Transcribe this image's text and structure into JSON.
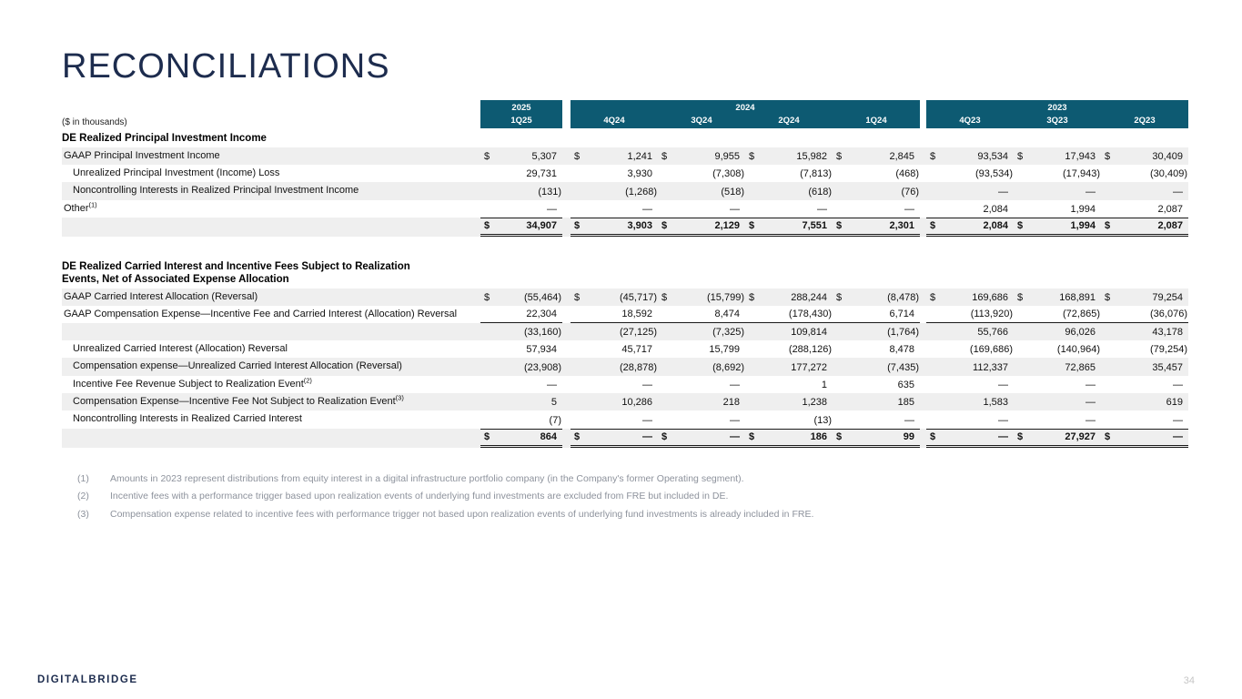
{
  "sym": {
    "dollar": "$"
  },
  "slide": {
    "title": "RECONCILIATIONS",
    "units": "($ in thousands)",
    "page": "34",
    "logo_a": "DIGITAL",
    "logo_b": "BRIDGE"
  },
  "colors": {
    "header_teal": "#0d5a72",
    "navy": "#1d2c4e",
    "stripe": "#efefef"
  },
  "header": {
    "groups": [
      {
        "year": "2025",
        "quarters": [
          "1Q25"
        ]
      },
      {
        "year": "2024",
        "quarters": [
          "4Q24",
          "3Q24",
          "2Q24",
          "1Q24"
        ]
      },
      {
        "year": "2023",
        "quarters": [
          "4Q23",
          "3Q23",
          "2Q23"
        ]
      }
    ]
  },
  "t1": {
    "section_title": "DE Realized Principal Investment Income",
    "rows": [
      {
        "label": "GAAP Principal Investment Income",
        "v": [
          "5,307",
          "1,241",
          "9,955",
          "15,982",
          "2,845",
          "93,534",
          "17,943",
          "30,409"
        ]
      },
      {
        "label": "Unrealized Principal Investment (Income) Loss",
        "v": [
          "29,731",
          "3,930",
          "(7,308)",
          "(7,813)",
          "(468)",
          "(93,534)",
          "(17,943)",
          "(30,409)"
        ]
      },
      {
        "label": "Noncontrolling Interests in Realized Principal Investment Income",
        "v": [
          "(131)",
          "(1,268)",
          "(518)",
          "(618)",
          "(76)",
          "—",
          "—",
          "—"
        ]
      },
      {
        "label": "Other",
        "sup": "(1)",
        "v": [
          "—",
          "—",
          "—",
          "—",
          "—",
          "2,084",
          "1,994",
          "2,087"
        ]
      }
    ],
    "total": {
      "v": [
        "34,907",
        "3,903",
        "2,129",
        "7,551",
        "2,301",
        "2,084",
        "1,994",
        "2,087"
      ]
    }
  },
  "t2": {
    "section_title_line1": "DE Realized Carried Interest and Incentive Fees Subject to Realization",
    "section_title_line2": "Events, Net of Associated Expense Allocation",
    "rows": [
      {
        "label": "GAAP Carried Interest Allocation (Reversal)",
        "v": [
          "(55,464)",
          "(45,717)",
          "(15,799)",
          "288,244",
          "(8,478)",
          "169,686",
          "168,891",
          "79,254"
        ]
      },
      {
        "label": "GAAP Compensation Expense—Incentive Fee and Carried Interest (Allocation) Reversal",
        "v": [
          "22,304",
          "18,592",
          "8,474",
          "(178,430)",
          "6,714",
          "(113,920)",
          "(72,865)",
          "(36,076)"
        ]
      },
      {
        "label": "",
        "v": [
          "(33,160)",
          "(27,125)",
          "(7,325)",
          "109,814",
          "(1,764)",
          "55,766",
          "96,026",
          "43,178"
        ]
      },
      {
        "label": "Unrealized Carried Interest (Allocation) Reversal",
        "v": [
          "57,934",
          "45,717",
          "15,799",
          "(288,126)",
          "8,478",
          "(169,686)",
          "(140,964)",
          "(79,254)"
        ]
      },
      {
        "label": "Compensation expense—Unrealized Carried Interest Allocation (Reversal)",
        "v": [
          "(23,908)",
          "(28,878)",
          "(8,692)",
          "177,272",
          "(7,435)",
          "112,337",
          "72,865",
          "35,457"
        ]
      },
      {
        "label": "Incentive Fee Revenue Subject to Realization Event",
        "sup": "(2)",
        "v": [
          "—",
          "—",
          "—",
          "1",
          "635",
          "—",
          "—",
          "—"
        ]
      },
      {
        "label": "Compensation Expense—Incentive Fee Not Subject to Realization Event",
        "sup": "(3)",
        "v": [
          "5",
          "10,286",
          "218",
          "1,238",
          "185",
          "1,583",
          "—",
          "619"
        ]
      },
      {
        "label": "Noncontrolling Interests in Realized Carried Interest",
        "v": [
          "(7)",
          "—",
          "—",
          "(13)",
          "—",
          "—",
          "—",
          "—"
        ]
      }
    ],
    "total": {
      "v": [
        "864",
        "—",
        "—",
        "186",
        "99",
        "—",
        "27,927",
        "—"
      ]
    }
  },
  "footnotes": [
    {
      "n": "(1)",
      "text": "Amounts in 2023 represent distributions from equity interest in a digital infrastructure portfolio company (in the Company's former Operating segment)."
    },
    {
      "n": "(2)",
      "text": "Incentive fees with a performance trigger based upon realization events of underlying fund investments are excluded from FRE but included in DE."
    },
    {
      "n": "(3)",
      "text": "Compensation expense related to incentive fees with performance trigger not based upon realization events of underlying fund investments is already included in FRE."
    }
  ]
}
